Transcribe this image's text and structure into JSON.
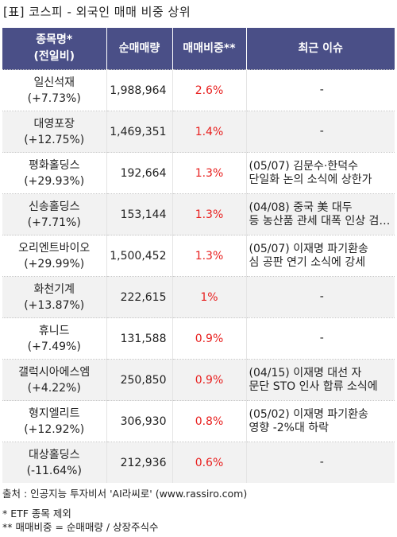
{
  "title": "[표] 코스피 - 외국인 매매 비중 상위",
  "header": {
    "name_line1": "종목명*",
    "name_line2": "(전일비)",
    "volume": "순매매량",
    "ratio": "매매비중**",
    "issue": "최근 이슈"
  },
  "rows": [
    {
      "name": "일신석재",
      "change": "(+7.73%)",
      "volume": "1,988,964",
      "ratio": "2.6%",
      "issue": [
        "-"
      ]
    },
    {
      "name": "대영포장",
      "change": "(+12.75%)",
      "volume": "1,469,351",
      "ratio": "1.4%",
      "issue": [
        "-"
      ]
    },
    {
      "name": "평화홀딩스",
      "change": "(+29.93%)",
      "volume": "192,664",
      "ratio": "1.3%",
      "issue": [
        "(05/07) 김문수·한덕수",
        "단일화 논의 소식에 상한가"
      ]
    },
    {
      "name": "신송홀딩스",
      "change": "(+7.71%)",
      "volume": "153,144",
      "ratio": "1.3%",
      "issue": [
        "(04/08) 중국 美 대두",
        "등 농산품 관세 대폭 인상 검…"
      ]
    },
    {
      "name": "오리엔트바이오",
      "change": "(+29.99%)",
      "volume": "1,500,452",
      "ratio": "1.3%",
      "issue": [
        "(05/07) 이재명 파기환송",
        "심 공판 연기 소식에 강세"
      ]
    },
    {
      "name": "화천기계",
      "change": "(+13.87%)",
      "volume": "222,615",
      "ratio": "1%",
      "issue": [
        "-"
      ]
    },
    {
      "name": "휴니드",
      "change": "(+7.49%)",
      "volume": "131,588",
      "ratio": "0.9%",
      "issue": [
        "-"
      ]
    },
    {
      "name": "갤럭시아에스엠",
      "change": "(+4.22%)",
      "volume": "250,850",
      "ratio": "0.9%",
      "issue": [
        "(04/15) 이재명 대선 자",
        "문단 STO 인사 합류 소식에"
      ]
    },
    {
      "name": "형지엘리트",
      "change": "(+12.92%)",
      "volume": "306,930",
      "ratio": "0.8%",
      "issue": [
        "(05/02) 이재명 파기환송",
        " 영향 -2%대 하락"
      ]
    },
    {
      "name": "대상홀딩스",
      "change": "(-11.64%)",
      "volume": "212,936",
      "ratio": "0.6%",
      "issue": [
        "-"
      ]
    }
  ],
  "footer": {
    "source": "출처 : 인공지능 투자비서 'AI라씨로' (www.rassiro.com)",
    "note1": "* ETF 종목 제외",
    "note2": "** 매매비중 = 순매매량 / 상장주식수"
  },
  "colors": {
    "header_bg": "#4a4f87",
    "header_text": "#ffffff",
    "ratio_text": "#e8201f",
    "stripe_bg": "#f2f2f2"
  }
}
